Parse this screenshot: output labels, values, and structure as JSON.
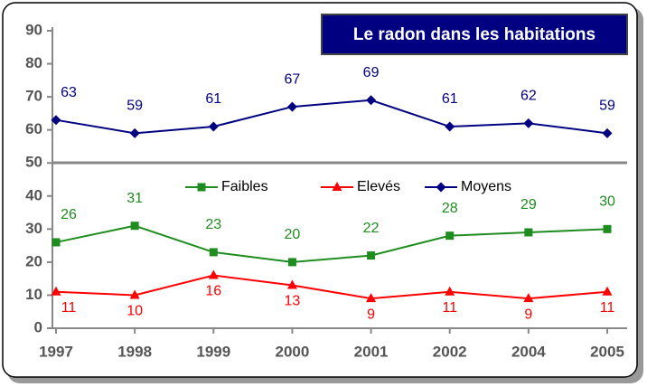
{
  "chart_data": {
    "type": "line",
    "title": "Le radon dans les habitations",
    "categories": [
      "1997",
      "1998",
      "1999",
      "2000",
      "2001",
      "2002",
      "2004",
      "2005"
    ],
    "series": [
      {
        "name": "Faibles",
        "color": "#1e8c1e",
        "marker": "square",
        "values": [
          26,
          31,
          23,
          20,
          22,
          28,
          29,
          30
        ]
      },
      {
        "name": "Elevés",
        "color": "#ff0000",
        "marker": "triangle",
        "values": [
          11,
          10,
          16,
          13,
          9,
          11,
          9,
          11
        ]
      },
      {
        "name": "Moyens",
        "color": "#000080",
        "marker": "diamond",
        "values": [
          63,
          59,
          61,
          67,
          69,
          61,
          62,
          59
        ]
      }
    ],
    "ylim": [
      0,
      90
    ],
    "yticks": [
      0,
      10,
      20,
      30,
      40,
      50,
      60,
      70,
      80,
      90
    ],
    "legend": "center"
  }
}
